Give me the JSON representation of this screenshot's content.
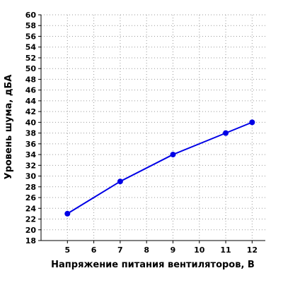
{
  "chart_data": {
    "type": "line",
    "title": "",
    "xlabel": "Напряжение питания вентиляторов, В",
    "ylabel": "Уровень шума, дБА",
    "x_ticks": [
      5,
      6,
      7,
      8,
      9,
      10,
      11,
      12
    ],
    "y_ticks": [
      18,
      20,
      22,
      24,
      26,
      28,
      30,
      32,
      34,
      36,
      38,
      40,
      42,
      44,
      46,
      48,
      50,
      52,
      54,
      56,
      58,
      60
    ],
    "xlim": [
      4,
      12.5
    ],
    "ylim": [
      18,
      60
    ],
    "grid": true,
    "legend": "none",
    "series": [
      {
        "x": [
          5,
          7,
          9,
          11,
          12
        ],
        "y": [
          23,
          29,
          34,
          38,
          40
        ],
        "color": "#0000e6"
      }
    ]
  }
}
